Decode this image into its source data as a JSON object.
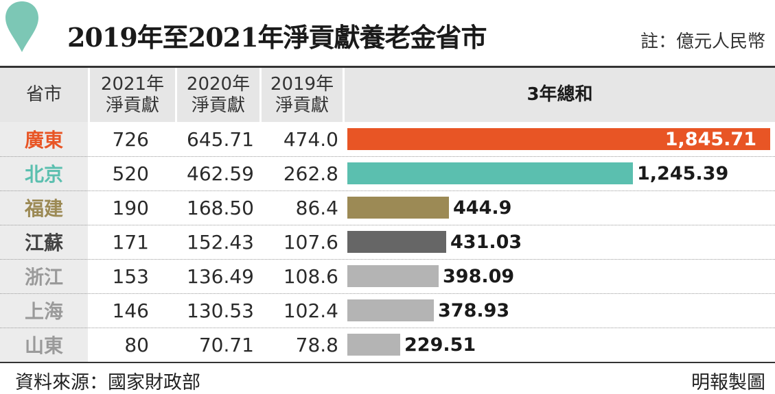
{
  "title": "2019年至2021年淨貢獻養老金省市",
  "unit_note": "註：億元人民幣",
  "source": "資料來源：國家財政部",
  "credit": "明報製圖",
  "colors": {
    "accent_drop": "#7cc7b5",
    "guangdong": "#e85525",
    "beijing": "#5bbfaf",
    "fujian": "#9c8a55",
    "jiangsu": "#666666",
    "others": "#b4b4b4"
  },
  "chart_data": {
    "type": "table",
    "columns": [
      "省市",
      "2021年 淨貢獻",
      "2020年 淨貢獻",
      "2019年 淨貢獻",
      "3年總和"
    ],
    "header": {
      "province": "省市",
      "y2021_line1": "2021年",
      "y2021_line2": "淨貢獻",
      "y2020_line1": "2020年",
      "y2020_line2": "淨貢獻",
      "y2019_line1": "2019年",
      "y2019_line2": "淨貢獻",
      "total": "3年總和"
    },
    "rows": [
      {
        "province": "廣東",
        "y2021": "726",
        "y2020": "645.71",
        "y2019": "474.0",
        "total_label": "1,845.71",
        "total": 1845.71,
        "color": "#e85525",
        "label_color": "#e85525"
      },
      {
        "province": "北京",
        "y2021": "520",
        "y2020": "462.59",
        "y2019": "262.8",
        "total_label": "1,245.39",
        "total": 1245.39,
        "color": "#5bbfaf",
        "label_color": "#5bbfaf"
      },
      {
        "province": "福建",
        "y2021": "190",
        "y2020": "168.50",
        "y2019": "86.4",
        "total_label": "444.9",
        "total": 444.9,
        "color": "#9c8a55",
        "label_color": "#9c8a55"
      },
      {
        "province": "江蘇",
        "y2021": "171",
        "y2020": "152.43",
        "y2019": "107.6",
        "total_label": "431.03",
        "total": 431.03,
        "color": "#666666",
        "label_color": "#444444"
      },
      {
        "province": "浙江",
        "y2021": "153",
        "y2020": "136.49",
        "y2019": "108.6",
        "total_label": "398.09",
        "total": 398.09,
        "color": "#b4b4b4",
        "label_color": "#9a9a9a"
      },
      {
        "province": "上海",
        "y2021": "146",
        "y2020": "130.53",
        "y2019": "102.4",
        "total_label": "378.93",
        "total": 378.93,
        "color": "#b4b4b4",
        "label_color": "#9a9a9a"
      },
      {
        "province": "山東",
        "y2021": "80",
        "y2020": "70.71",
        "y2019": "78.8",
        "total_label": "229.51",
        "total": 229.51,
        "color": "#b4b4b4",
        "label_color": "#9a9a9a"
      }
    ]
  }
}
